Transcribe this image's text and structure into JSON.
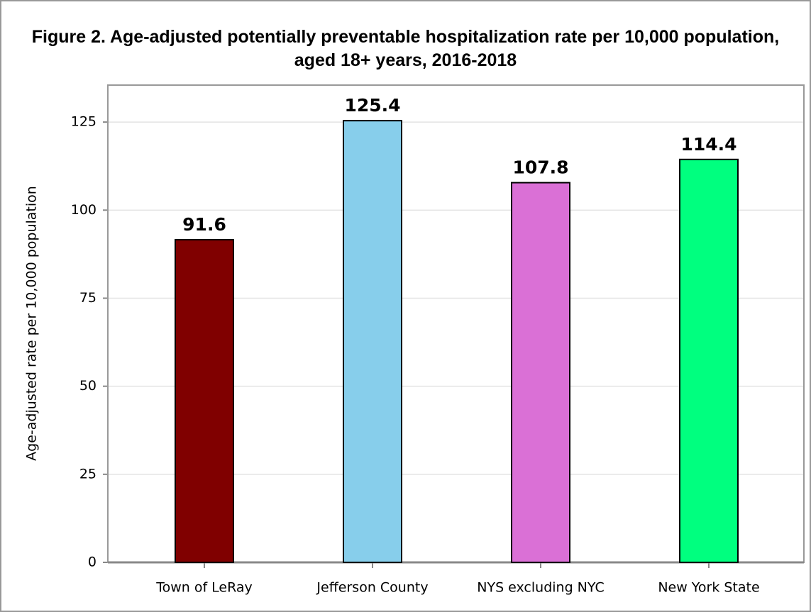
{
  "chart_data": {
    "type": "bar",
    "title": "Figure 2. Age-adjusted potentially preventable hospitalization rate per 10,000 population, aged 18+ years, 2016-2018",
    "y_label": "Age-adjusted rate per 10,000 population",
    "categories": [
      "Town of LeRay",
      "Jefferson County",
      "NYS excluding NYC",
      "New York State"
    ],
    "values": [
      91.6,
      125.4,
      107.8,
      114.4
    ],
    "colors": [
      "#800000",
      "#87ceeb",
      "#da70d6",
      "#00ff7f"
    ],
    "ylim": [
      0,
      135.5
    ],
    "yticks": [
      0,
      25,
      50,
      75,
      100,
      125
    ],
    "grid": true
  }
}
